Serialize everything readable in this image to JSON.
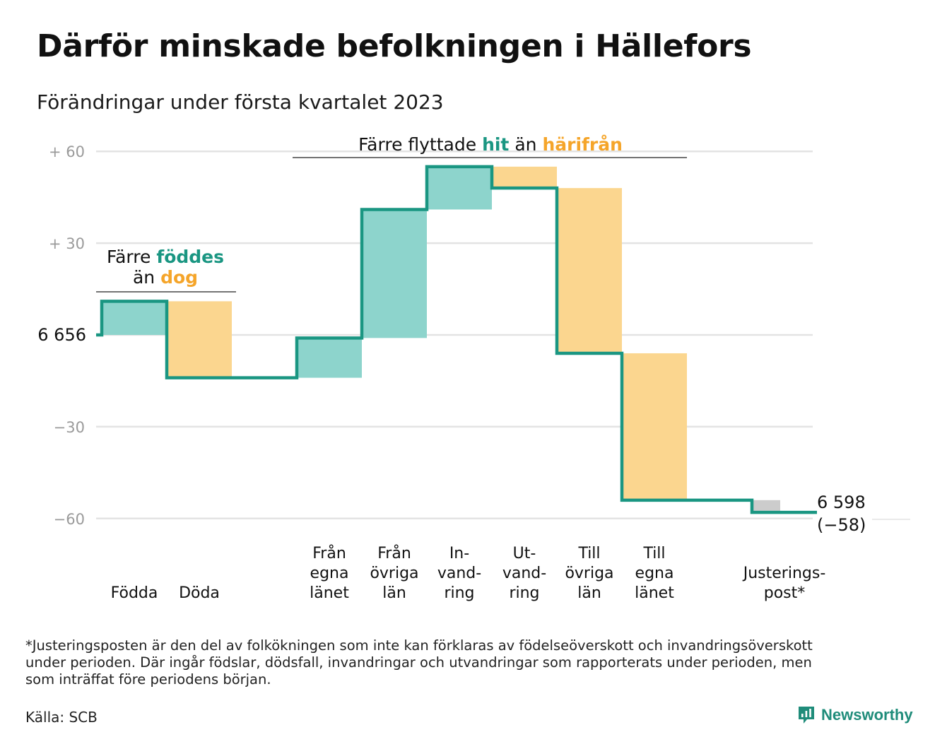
{
  "title": "Därför minskade befolkningen i Hällefors",
  "subtitle": "Förändringar under första kvartalet 2023",
  "chart_data": {
    "type": "waterfall",
    "baseline": 6656,
    "baseline_label": "6 656",
    "ylim": [
      -62,
      62
    ],
    "yticks": [
      {
        "value": 60,
        "label": "+ 60"
      },
      {
        "value": 30,
        "label": "+ 30"
      },
      {
        "value": 0,
        "label": ""
      },
      {
        "value": -30,
        "label": "−30"
      },
      {
        "value": -60,
        "label": "−60"
      }
    ],
    "steps": [
      {
        "category": [
          "Födda"
        ],
        "change": 11,
        "kind": "in"
      },
      {
        "category": [
          "Döda"
        ],
        "change": -25,
        "kind": "out"
      },
      {
        "category": [],
        "change": 0,
        "kind": "gap"
      },
      {
        "category": [
          "Från",
          "egna",
          "länet"
        ],
        "change": 13,
        "kind": "in"
      },
      {
        "category": [
          "Från",
          "övriga",
          "län"
        ],
        "change": 42,
        "kind": "in"
      },
      {
        "category": [
          "In-",
          "vand-",
          "ring"
        ],
        "change": 14,
        "kind": "in"
      },
      {
        "category": [
          "Ut-",
          "vand-",
          "ring"
        ],
        "change": -7,
        "kind": "out"
      },
      {
        "category": [
          "Till",
          "övriga",
          "län"
        ],
        "change": -54,
        "kind": "out"
      },
      {
        "category": [
          "Till",
          "egna",
          "länet"
        ],
        "change": -48,
        "kind": "out"
      },
      {
        "category": [],
        "change": 0,
        "kind": "gap"
      },
      {
        "category": [
          "Justerings-",
          "post*"
        ],
        "change": -4,
        "kind": "adjust"
      }
    ],
    "end_label": "6 598",
    "end_change_label": "(−58)",
    "annotations": [
      {
        "parts": [
          {
            "text": "Färre ",
            "role": "plain"
          },
          {
            "text": "föddes",
            "role": "in"
          }
        ],
        "line2": [
          {
            "text": "än ",
            "role": "plain"
          },
          {
            "text": "dog",
            "role": "out"
          }
        ],
        "from_step": 0,
        "to_step": 1
      },
      {
        "parts": [
          {
            "text": "Färre flyttade ",
            "role": "plain"
          },
          {
            "text": "hit",
            "role": "in"
          },
          {
            "text": " än ",
            "role": "plain"
          },
          {
            "text": "härifrån",
            "role": "out"
          }
        ],
        "from_step": 3,
        "to_step": 8
      }
    ],
    "colors": {
      "line": "#1a9682",
      "in": "#8dd4cc",
      "out": "#fbd68f",
      "adjust": "#cccccc",
      "in_text": "#1a9682",
      "out_text": "#f5a52a",
      "grid": "#e3e3e3"
    }
  },
  "footnote": "*Justeringsposten är den del av folkökningen som inte kan förklaras av födelseöverskott och invandringsöverskott\nunder perioden. Där ingår födslar, dödsfall, invandringar och utvandringar som rapporterats under perioden, men\nsom inträffat före periodens början.",
  "source": "Källa: SCB",
  "brand": {
    "name": "Newsworthy",
    "icon": "newsworthy-logo-icon",
    "color": "#1f8c7a"
  }
}
